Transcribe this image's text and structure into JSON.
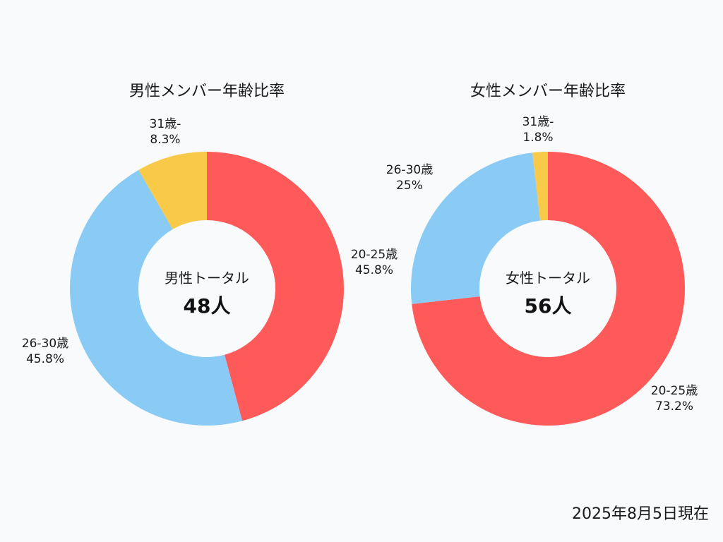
{
  "chart_data": [
    {
      "type": "pie",
      "title": "男性メンバー年齢比率",
      "center_caption": "男性トータル",
      "center_total": "48人",
      "categories": [
        "20-25歳",
        "26-30歳",
        "31歳-"
      ],
      "values": [
        45.8,
        45.8,
        8.3
      ],
      "value_labels": [
        "45.8%",
        "45.8%",
        "8.3%"
      ],
      "colors": [
        "#fe5a5a",
        "#89cbf5",
        "#f9c94a"
      ]
    },
    {
      "type": "pie",
      "title": "女性メンバー年齢比率",
      "center_caption": "女性トータル",
      "center_total": "56人",
      "categories": [
        "20-25歳",
        "26-30歳",
        "31歳-"
      ],
      "values": [
        73.2,
        25,
        1.8
      ],
      "value_labels": [
        "73.2%",
        "25%",
        "1.8%"
      ],
      "colors": [
        "#fe5a5a",
        "#89cbf5",
        "#f9c94a"
      ]
    }
  ],
  "footer": {
    "date_text": "2025年8月5日現在"
  }
}
